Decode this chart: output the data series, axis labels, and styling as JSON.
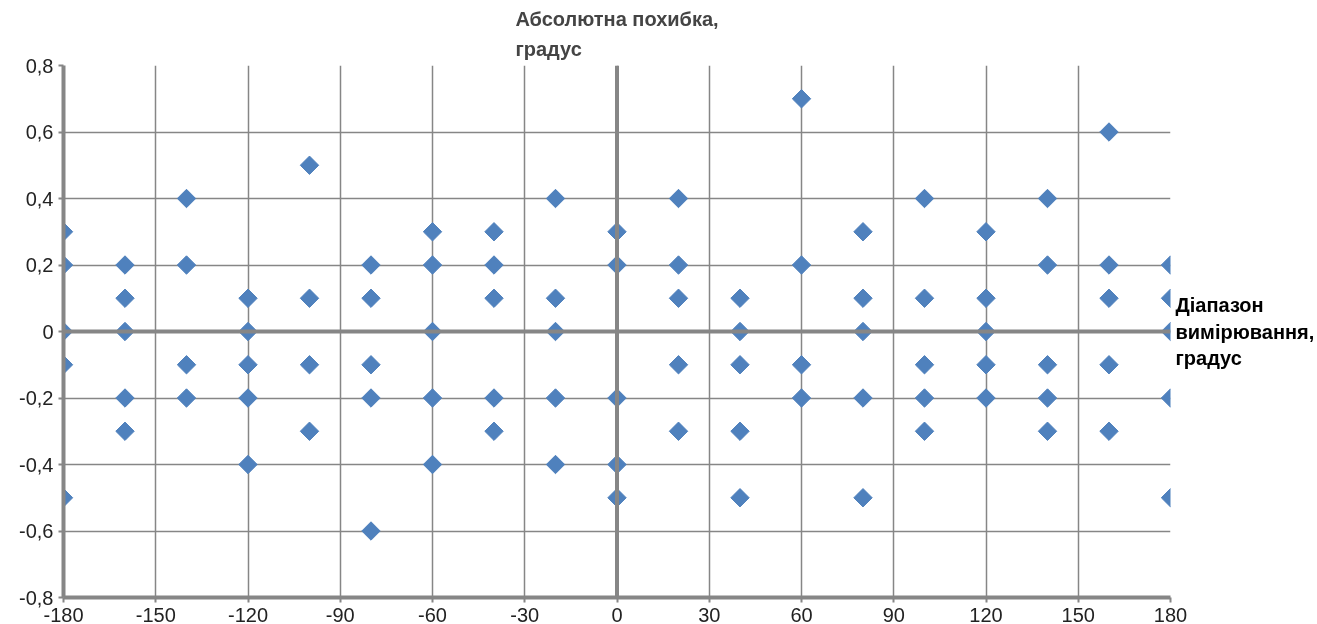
{
  "chart_data": {
    "type": "scatter",
    "ylabel": "Абсолютна похибка, градус",
    "xlabel": "Діапазон вимірювання, градус",
    "xlim": [
      -180,
      180
    ],
    "xticks": [
      -180,
      -150,
      -120,
      -90,
      -60,
      -30,
      0,
      30,
      60,
      90,
      120,
      150,
      180
    ],
    "ylim": [
      -0.8,
      0.8
    ],
    "yticks": [
      {
        "value": -0.8,
        "label": "-0,8"
      },
      {
        "value": -0.6,
        "label": "-0,6"
      },
      {
        "value": -0.4,
        "label": "-0,4"
      },
      {
        "value": -0.2,
        "label": "-0,2"
      },
      0,
      {
        "value": 0.2,
        "label": "0,2"
      },
      {
        "value": 0.4,
        "label": "0,4"
      },
      {
        "value": 0.6,
        "label": "0,6"
      },
      {
        "value": 0.8,
        "label": "0,8"
      }
    ],
    "grid": true,
    "marker": "diamond",
    "series": [
      {
        "color": "#4f81bd",
        "x": [
          -180,
          -180,
          -180,
          -180,
          -180,
          -160,
          -160,
          -160,
          -160,
          -160,
          -140,
          -140,
          -140,
          -140,
          -120,
          -120,
          -120,
          -120,
          -120,
          -100,
          -100,
          -100,
          -100,
          -80,
          -80,
          -80,
          -80,
          -80,
          -60,
          -60,
          -60,
          -60,
          -60,
          -40,
          -40,
          -40,
          -40,
          -40,
          -20,
          -20,
          -20,
          -20,
          -20,
          0,
          0,
          0,
          0,
          0,
          20,
          20,
          20,
          20,
          20,
          40,
          40,
          40,
          40,
          40,
          60,
          60,
          60,
          60,
          80,
          80,
          80,
          80,
          80,
          100,
          100,
          100,
          100,
          100,
          120,
          120,
          120,
          120,
          120,
          140,
          140,
          140,
          140,
          140,
          160,
          160,
          160,
          160,
          160,
          180,
          180,
          180,
          180,
          180
        ],
        "values": [
          0.3,
          0.2,
          0,
          -0.1,
          -0.5,
          0.2,
          0.1,
          0,
          -0.2,
          -0.3,
          0.4,
          0.2,
          -0.1,
          -0.2,
          0.1,
          0,
          -0.1,
          -0.2,
          -0.4,
          0.5,
          0.1,
          -0.1,
          -0.3,
          0.2,
          0.1,
          -0.1,
          -0.2,
          -0.6,
          0.3,
          0.2,
          0,
          -0.2,
          -0.4,
          0.3,
          0.2,
          0.1,
          -0.2,
          -0.3,
          0.4,
          0.1,
          0,
          -0.2,
          -0.4,
          0.3,
          0.2,
          -0.2,
          -0.4,
          -0.5,
          0.4,
          0.2,
          0.1,
          -0.1,
          -0.3,
          0.1,
          0,
          -0.1,
          -0.3,
          -0.5,
          0.7,
          0.2,
          -0.1,
          -0.2,
          0.3,
          0.1,
          0,
          -0.2,
          -0.5,
          0.4,
          0.1,
          -0.1,
          -0.2,
          -0.3,
          0.3,
          0.1,
          0,
          -0.1,
          -0.2,
          0.4,
          0.2,
          -0.1,
          -0.2,
          -0.3,
          0.6,
          0.2,
          0.1,
          -0.1,
          -0.3,
          0.2,
          0.1,
          0,
          -0.2,
          -0.5
        ]
      }
    ]
  }
}
